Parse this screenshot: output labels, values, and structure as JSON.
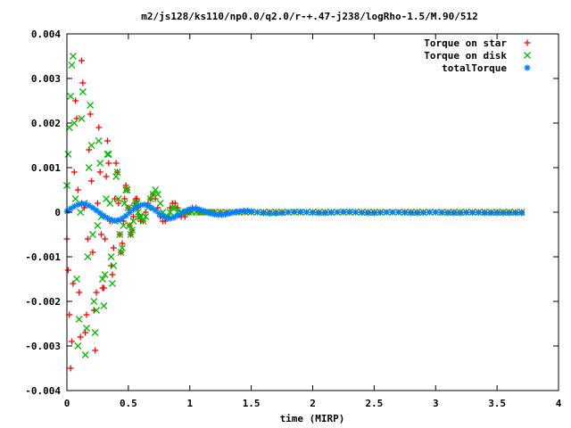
{
  "chart_data": {
    "type": "scatter",
    "title": "m2/js128/ks110/np0.0/q2.0/r-+.47-j238/logRho-1.5/M.90/512",
    "xlabel": "time (MIRP)",
    "ylabel": "",
    "xlim": [
      0,
      4
    ],
    "ylim": [
      -0.004,
      0.004
    ],
    "x_ticks": [
      "0",
      "0.5",
      "1",
      "1.5",
      "2",
      "2.5",
      "3",
      "3.5",
      "4"
    ],
    "y_ticks": [
      "0.004",
      "0.003",
      "0.002",
      "0.001",
      "0",
      "-0.001",
      "-0.002",
      "-0.003",
      "-0.004"
    ],
    "grid": false,
    "legend_position": "top-right",
    "series": [
      {
        "name": "Torque on star",
        "marker": "+",
        "color": "#ff0000",
        "x": [
          0.0,
          0.01,
          0.02,
          0.03,
          0.04,
          0.05,
          0.06,
          0.07,
          0.08,
          0.09,
          0.1,
          0.11,
          0.12,
          0.13,
          0.14,
          0.15,
          0.16,
          0.17,
          0.18,
          0.19,
          0.2,
          0.21,
          0.22,
          0.23,
          0.24,
          0.25,
          0.26,
          0.27,
          0.28,
          0.29,
          0.3,
          0.31,
          0.32,
          0.33,
          0.34,
          0.35,
          0.36,
          0.37,
          0.38,
          0.39,
          0.4,
          0.41,
          0.42,
          0.43,
          0.44,
          0.45,
          0.46,
          0.47,
          0.48,
          0.49,
          0.5,
          0.51,
          0.52,
          0.53,
          0.54,
          0.55,
          0.56,
          0.57,
          0.58,
          0.59,
          0.6,
          0.62,
          0.64,
          0.66,
          0.68,
          0.7,
          0.72,
          0.74,
          0.76,
          0.78,
          0.8,
          0.82,
          0.84,
          0.86,
          0.88,
          0.9,
          0.93,
          0.96,
          0.99,
          1.02,
          1.05,
          1.08,
          1.11,
          1.14,
          1.17,
          1.2,
          1.25,
          1.3,
          1.35,
          1.4,
          1.45,
          1.5,
          1.55,
          1.6,
          1.65,
          1.7,
          1.75,
          1.8,
          1.85,
          1.9,
          1.95,
          2.0,
          2.05,
          2.1,
          2.15,
          2.2,
          2.25,
          2.3,
          2.35,
          2.4,
          2.45,
          2.5,
          2.55,
          2.6,
          2.65,
          2.7,
          2.75,
          2.8,
          2.85,
          2.9,
          2.95,
          3.0,
          3.05,
          3.1,
          3.15,
          3.2,
          3.25,
          3.3,
          3.35,
          3.4,
          3.45,
          3.5,
          3.55,
          3.6,
          3.65,
          3.7
        ],
        "y": [
          -0.0006,
          -0.0013,
          -0.0023,
          -0.0035,
          -0.0029,
          -0.0016,
          0.0009,
          0.0025,
          0.0021,
          0.0005,
          -0.0018,
          -0.0028,
          0.0034,
          0.0029,
          0.0001,
          -0.0027,
          -0.0023,
          -0.0006,
          0.0014,
          0.0022,
          0.0007,
          -0.0009,
          -0.0022,
          -0.0031,
          -0.0018,
          0.0002,
          0.0019,
          0.0009,
          -0.0005,
          -0.0017,
          -0.0017,
          -0.0006,
          0.0008,
          0.0016,
          0.0011,
          -0.0002,
          -0.0012,
          -0.0014,
          -0.0008,
          0.0003,
          0.0011,
          0.0009,
          0.0002,
          -0.0005,
          -0.0009,
          -0.0007,
          -0.0002,
          0.0003,
          0.0006,
          0.0005,
          0.0001,
          -0.0003,
          -0.0005,
          -0.0004,
          -0.0001,
          0.0002,
          0.0003,
          0.0003,
          0.0001,
          -0.0001,
          -0.0002,
          -0.0002,
          0.0,
          0.0002,
          0.0003,
          0.0004,
          0.0003,
          0.0001,
          -0.0001,
          -0.0002,
          -0.0002,
          -0.0001,
          0.0001,
          0.0002,
          0.0002,
          0.0001,
          -0.0001,
          -0.0001,
          0.0,
          0.0001,
          0.0001,
          0.0,
          0.0,
          0.0,
          0.0,
          0.0,
          0.0,
          0.0,
          0.0,
          0.0,
          0.0,
          0.0,
          0.0,
          0.0,
          0.0,
          0.0,
          0.0,
          0.0,
          0.0,
          0.0,
          0.0,
          0.0,
          0.0,
          0.0,
          0.0,
          0.0,
          0.0,
          0.0,
          0.0,
          0.0,
          0.0,
          0.0,
          0.0,
          0.0,
          0.0,
          0.0,
          0.0,
          0.0,
          0.0,
          0.0,
          0.0,
          0.0,
          0.0,
          0.0,
          0.0,
          0.0,
          0.0,
          0.0,
          0.0,
          0.0,
          0.0,
          0.0,
          0.0,
          0.0,
          0.0,
          0.0
        ]
      },
      {
        "name": "Torque on disk",
        "marker": "x",
        "color": "#00c000",
        "x": [
          0.0,
          0.01,
          0.02,
          0.03,
          0.04,
          0.05,
          0.06,
          0.07,
          0.08,
          0.09,
          0.1,
          0.11,
          0.12,
          0.13,
          0.14,
          0.15,
          0.16,
          0.17,
          0.18,
          0.19,
          0.2,
          0.21,
          0.22,
          0.23,
          0.24,
          0.25,
          0.26,
          0.27,
          0.28,
          0.29,
          0.3,
          0.31,
          0.32,
          0.33,
          0.34,
          0.35,
          0.36,
          0.37,
          0.38,
          0.39,
          0.4,
          0.41,
          0.42,
          0.43,
          0.44,
          0.45,
          0.46,
          0.47,
          0.48,
          0.49,
          0.5,
          0.51,
          0.52,
          0.53,
          0.54,
          0.55,
          0.56,
          0.57,
          0.58,
          0.59,
          0.6,
          0.62,
          0.64,
          0.66,
          0.68,
          0.7,
          0.72,
          0.74,
          0.76,
          0.78,
          0.8,
          0.82,
          0.84,
          0.86,
          0.88,
          0.9,
          0.93,
          0.96,
          0.99,
          1.02,
          1.05,
          1.08,
          1.11,
          1.14,
          1.17,
          1.2,
          1.25,
          1.3,
          1.35,
          1.4,
          1.45,
          1.5,
          1.55,
          1.6,
          1.65,
          1.7,
          1.75,
          1.8,
          1.85,
          1.9,
          1.95,
          2.0,
          2.05,
          2.1,
          2.15,
          2.2,
          2.25,
          2.3,
          2.35,
          2.4,
          2.45,
          2.5,
          2.55,
          2.6,
          2.65,
          2.7,
          2.75,
          2.8,
          2.85,
          2.9,
          2.95,
          3.0,
          3.05,
          3.1,
          3.15,
          3.2,
          3.25,
          3.3,
          3.35,
          3.4,
          3.45,
          3.5,
          3.55,
          3.6,
          3.65,
          3.7
        ],
        "y": [
          0.0006,
          0.0013,
          0.0019,
          0.0026,
          0.0033,
          0.0035,
          0.002,
          0.0003,
          -0.0015,
          -0.003,
          -0.0024,
          0.0,
          0.0021,
          0.0027,
          0.0002,
          -0.0032,
          -0.0026,
          -0.001,
          0.001,
          0.0024,
          0.0015,
          -0.0005,
          -0.002,
          -0.0027,
          -0.0022,
          -0.0003,
          0.0016,
          0.0011,
          -0.0001,
          -0.0015,
          -0.0021,
          -0.0014,
          0.0003,
          0.0013,
          0.0013,
          0.0002,
          -0.001,
          -0.0016,
          -0.0012,
          -0.0002,
          0.0008,
          0.0009,
          0.0003,
          -0.0005,
          -0.0009,
          -0.0008,
          -0.0003,
          0.0002,
          0.0005,
          0.0005,
          0.0001,
          -0.0003,
          -0.0005,
          -0.0004,
          -0.0002,
          0.0001,
          0.0002,
          0.0002,
          0.0,
          -0.0001,
          -0.0001,
          -0.0002,
          -0.0001,
          0.0001,
          0.0003,
          0.0004,
          0.0005,
          0.0004,
          0.0002,
          0.0,
          -0.0001,
          -0.0001,
          0.0,
          0.0001,
          0.0001,
          0.0,
          0.0,
          0.0,
          0.0,
          0.0,
          0.0,
          0.0,
          0.0,
          0.0,
          0.0,
          0.0,
          0.0,
          0.0,
          0.0,
          0.0,
          0.0,
          0.0,
          0.0,
          0.0,
          0.0,
          0.0,
          0.0,
          0.0,
          0.0,
          0.0,
          0.0,
          0.0,
          0.0,
          0.0,
          0.0,
          0.0,
          0.0,
          0.0,
          0.0,
          0.0,
          0.0,
          0.0,
          0.0,
          0.0,
          0.0,
          0.0,
          0.0,
          0.0,
          0.0,
          0.0,
          0.0,
          0.0,
          0.0,
          0.0,
          0.0,
          0.0,
          0.0,
          0.0,
          0.0,
          0.0,
          0.0,
          0.0,
          0.0,
          0.0,
          0.0,
          0.0
        ]
      },
      {
        "name": "totalTorque",
        "marker": "*",
        "color": "#0080ff",
        "x": [
          0.0,
          0.03,
          0.06,
          0.09,
          0.12,
          0.15,
          0.18,
          0.21,
          0.24,
          0.27,
          0.3,
          0.33,
          0.36,
          0.39,
          0.42,
          0.45,
          0.48,
          0.51,
          0.54,
          0.57,
          0.6,
          0.63,
          0.66,
          0.69,
          0.72,
          0.75,
          0.78,
          0.81,
          0.84,
          0.87,
          0.9,
          0.93,
          0.96,
          0.99,
          1.02,
          1.05,
          1.08,
          1.11,
          1.14,
          1.17,
          1.2,
          1.23,
          1.26,
          1.29,
          1.32,
          1.35,
          1.38,
          1.41,
          1.44,
          1.47,
          1.5,
          1.55,
          1.6,
          1.65,
          1.7,
          1.75,
          1.8,
          1.85,
          1.9,
          1.95,
          2.0,
          2.05,
          2.1,
          2.15,
          2.2,
          2.25,
          2.3,
          2.35,
          2.4,
          2.45,
          2.5,
          2.55,
          2.6,
          2.65,
          2.7,
          2.75,
          2.8,
          2.85,
          2.9,
          2.95,
          3.0,
          3.05,
          3.1,
          3.15,
          3.2,
          3.25,
          3.3,
          3.35,
          3.4,
          3.45,
          3.5,
          3.55,
          3.6,
          3.65,
          3.7
        ],
        "y": [
          2e-05,
          8e-05,
          0.00013,
          0.00017,
          0.00019,
          0.00018,
          0.00015,
          0.0001,
          4e-05,
          -2e-05,
          -8e-05,
          -0.00013,
          -0.00017,
          -0.00019,
          -0.00018,
          -0.00014,
          -8e-05,
          -1e-05,
          6e-05,
          0.00012,
          0.00016,
          0.00017,
          0.00015,
          0.0001,
          4e-05,
          -3e-05,
          -9e-05,
          -0.00013,
          -0.00014,
          -0.00012,
          -8e-05,
          -3e-05,
          2e-05,
          6e-05,
          8e-05,
          8e-05,
          6e-05,
          3e-05,
          0.0,
          -3e-05,
          -5e-05,
          -6e-05,
          -6e-05,
          -5e-05,
          -3e-05,
          -1e-05,
          1e-05,
          2e-05,
          3e-05,
          3e-05,
          2e-05,
          0.0,
          -2e-05,
          -3e-05,
          -3e-05,
          -2e-05,
          0.0,
          1e-05,
          1e-05,
          0.0,
          -1e-05,
          -2e-05,
          -2e-05,
          -1e-05,
          0.0,
          1e-05,
          1e-05,
          0.0,
          -1e-05,
          -2e-05,
          -2e-05,
          -1e-05,
          0.0,
          0.0,
          0.0,
          -1e-05,
          -2e-05,
          -2e-05,
          -1e-05,
          0.0,
          0.0,
          -1e-05,
          -2e-05,
          -2e-05,
          -2e-05,
          -1e-05,
          -1e-05,
          -1e-05,
          -2e-05,
          -2e-05,
          -2e-05,
          -2e-05,
          -2e-05,
          -2e-05,
          -2e-05
        ]
      }
    ]
  }
}
